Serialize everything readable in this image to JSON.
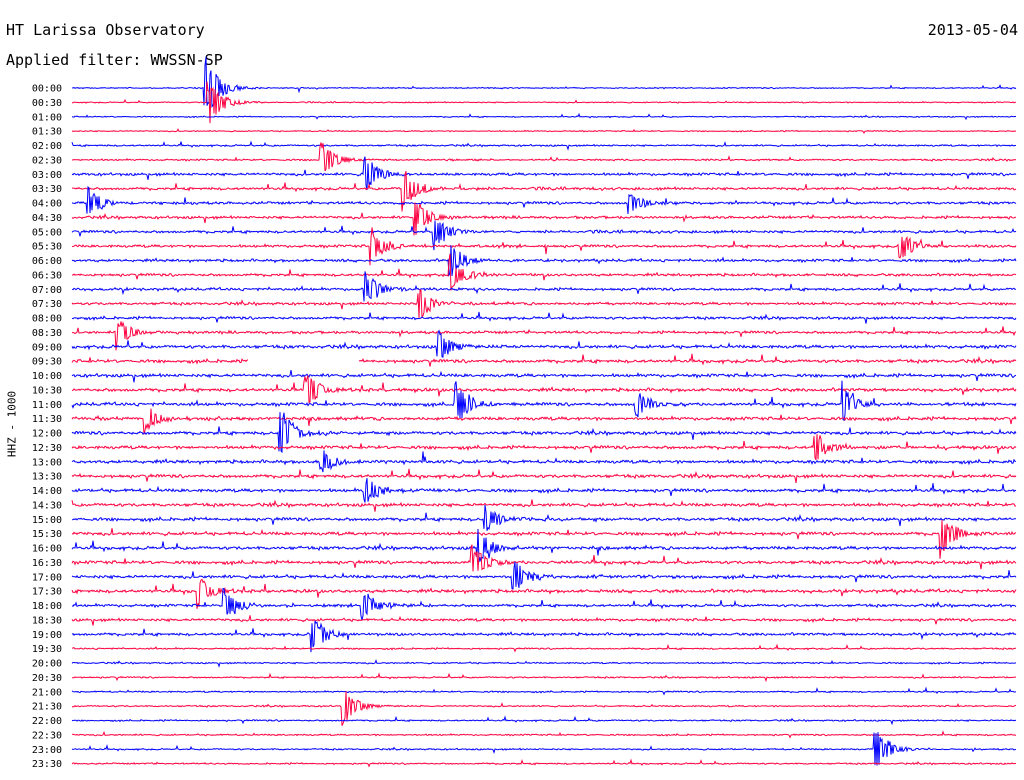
{
  "header": {
    "title": "HT Larissa Observatory",
    "date": "2013-05-04",
    "filter": "Applied filter: WWSSN-SP"
  },
  "chart_data": {
    "type": "line",
    "title": "HT Larissa Observatory",
    "subtitle": "Applied filter: WWSSN-SP",
    "date": "2013-05-04",
    "ylabel": "HHZ - 1000",
    "xlabel": "",
    "trace_times": [
      "00:00",
      "00:30",
      "01:00",
      "01:30",
      "02:00",
      "02:30",
      "03:00",
      "03:30",
      "04:00",
      "04:30",
      "05:00",
      "05:30",
      "06:00",
      "06:30",
      "07:00",
      "07:30",
      "08:00",
      "08:30",
      "09:00",
      "09:30",
      "10:00",
      "10:30",
      "11:00",
      "11:30",
      "12:00",
      "12:30",
      "13:00",
      "13:30",
      "14:00",
      "14:30",
      "15:00",
      "15:30",
      "16:00",
      "16:30",
      "17:00",
      "17:30",
      "18:00",
      "18:30",
      "19:00",
      "19:30",
      "20:00",
      "20:30",
      "21:00",
      "21:30",
      "22:00",
      "22:30",
      "23:00",
      "23:30"
    ],
    "trace_colors": [
      "#0000ff",
      "#ff0040"
    ],
    "trace_duration_minutes": 30,
    "grid": false,
    "legend": "none",
    "events": [
      {
        "time": "00:00",
        "minute": 4.2,
        "amplitude": 1.0
      },
      {
        "time": "00:30",
        "minute": 4.3,
        "amplitude": 0.8
      },
      {
        "time": "02:30",
        "minute": 7.9,
        "amplitude": 0.55
      },
      {
        "time": "03:00",
        "minute": 9.3,
        "amplitude": 0.6
      },
      {
        "time": "03:30",
        "minute": 10.5,
        "amplitude": 0.65
      },
      {
        "time": "04:00",
        "minute": 0.5,
        "amplitude": 0.45
      },
      {
        "time": "04:00",
        "minute": 17.7,
        "amplitude": 0.4
      },
      {
        "time": "04:30",
        "minute": 10.9,
        "amplitude": 0.55
      },
      {
        "time": "05:00",
        "minute": 11.5,
        "amplitude": 0.5
      },
      {
        "time": "05:30",
        "minute": 9.5,
        "amplitude": 0.55
      },
      {
        "time": "05:30",
        "minute": 26.3,
        "amplitude": 0.45
      },
      {
        "time": "06:00",
        "minute": 12.0,
        "amplitude": 0.55
      },
      {
        "time": "06:30",
        "minute": 12.0,
        "amplitude": 0.6
      },
      {
        "time": "07:00",
        "minute": 9.3,
        "amplitude": 0.55
      },
      {
        "time": "07:30",
        "minute": 11.0,
        "amplitude": 0.5
      },
      {
        "time": "08:30",
        "minute": 1.4,
        "amplitude": 0.45
      },
      {
        "time": "09:00",
        "minute": 11.6,
        "amplitude": 0.5
      },
      {
        "time": "10:30",
        "minute": 7.4,
        "amplitude": 0.55
      },
      {
        "time": "11:00",
        "minute": 12.2,
        "amplitude": 0.65
      },
      {
        "time": "11:00",
        "minute": 17.9,
        "amplitude": 0.45
      },
      {
        "time": "11:00",
        "minute": 24.5,
        "amplitude": 0.5
      },
      {
        "time": "11:30",
        "minute": 2.3,
        "amplitude": 0.45
      },
      {
        "time": "12:00",
        "minute": 6.6,
        "amplitude": 0.8
      },
      {
        "time": "12:30",
        "minute": 23.6,
        "amplitude": 0.45
      },
      {
        "time": "13:00",
        "minute": 7.9,
        "amplitude": 0.45
      },
      {
        "time": "14:00",
        "minute": 9.3,
        "amplitude": 0.5
      },
      {
        "time": "15:00",
        "minute": 13.1,
        "amplitude": 0.45
      },
      {
        "time": "15:30",
        "minute": 27.6,
        "amplitude": 0.65
      },
      {
        "time": "16:00",
        "minute": 12.9,
        "amplitude": 0.55
      },
      {
        "time": "16:30",
        "minute": 12.7,
        "amplitude": 0.55
      },
      {
        "time": "17:00",
        "minute": 14.0,
        "amplitude": 0.55
      },
      {
        "time": "17:30",
        "minute": 4.0,
        "amplitude": 0.45
      },
      {
        "time": "18:00",
        "minute": 4.8,
        "amplitude": 0.6
      },
      {
        "time": "18:00",
        "minute": 9.2,
        "amplitude": 0.5
      },
      {
        "time": "19:00",
        "minute": 7.6,
        "amplitude": 0.6
      },
      {
        "time": "21:30",
        "minute": 8.6,
        "amplitude": 0.55
      },
      {
        "time": "23:00",
        "minute": 25.5,
        "amplitude": 0.7
      }
    ],
    "gaps": [
      {
        "time": "09:30",
        "from_minute": 5.6,
        "to_minute": 9.1
      }
    ]
  }
}
